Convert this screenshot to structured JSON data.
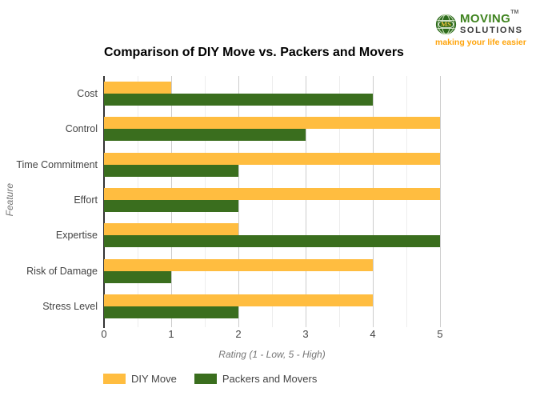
{
  "logo": {
    "monogram": "MS",
    "name_top": "MOVING",
    "name_bottom": "SOLUTIONS",
    "trademark": "TM",
    "tagline": "making your life easier",
    "brand_colors": {
      "green": "#3F831F",
      "dark_gray": "#3A3A3A",
      "orange": "#FFA40B"
    }
  },
  "chart_data": {
    "type": "bar",
    "orientation": "horizontal",
    "title": "Comparison of DIY Move vs. Packers and Movers",
    "categories": [
      "Cost",
      "Control",
      "Time Commitment",
      "Effort",
      "Expertise",
      "Risk of Damage",
      "Stress Level"
    ],
    "series": [
      {
        "name": "DIY Move",
        "color": "#FFBD40",
        "values": [
          1,
          5,
          5,
          5,
          2,
          4,
          4
        ]
      },
      {
        "name": "Packers and Movers",
        "color": "#3A6E1E",
        "values": [
          4,
          3,
          2,
          2,
          5,
          1,
          2
        ]
      }
    ],
    "xlabel": "Rating (1 - Low, 5 - High)",
    "ylabel": "Feature",
    "xlim": [
      0,
      5
    ],
    "xticks": [
      0,
      1,
      2,
      3,
      4,
      5
    ],
    "grid": "vertical gridlines, minor every 0.5, major every 1",
    "grid_colors": {
      "major": "#cccccc",
      "minor": "#ededed"
    },
    "axis_line_color": "#333333",
    "label_color": "#444444",
    "axis_title_color": "#757575",
    "legend_position": "bottom"
  }
}
